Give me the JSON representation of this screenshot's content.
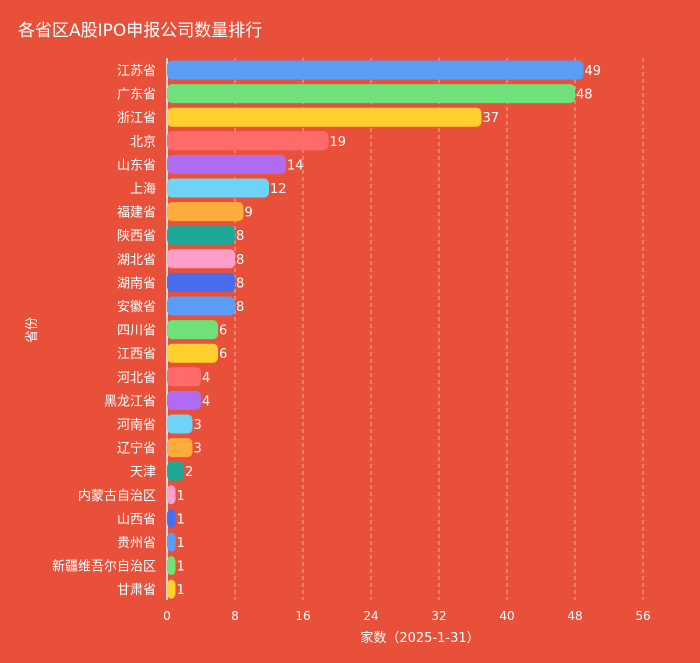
{
  "chart_data": {
    "type": "bar",
    "orientation": "horizontal",
    "title": "各省区A股IPO申报公司数量排行",
    "xlabel": "家数（2025-1-31）",
    "ylabel": "省份",
    "xlim": [
      0,
      60
    ],
    "xticks": [
      "0",
      "8",
      "16",
      "24",
      "32",
      "40",
      "48",
      "56"
    ],
    "grid": "vertical-dashed",
    "categories": [
      "江苏省",
      "广东省",
      "浙江省",
      "北京",
      "山东省",
      "上海",
      "福建省",
      "陕西省",
      "湖北省",
      "湖南省",
      "安徽省",
      "四川省",
      "江西省",
      "河北省",
      "黑龙江省",
      "河南省",
      "辽宁省",
      "天津",
      "内蒙古自治区",
      "山西省",
      "贵州省",
      "新疆维吾尔自治区",
      "甘肃省"
    ],
    "values": [
      49,
      48,
      37,
      19,
      14,
      12,
      9,
      8,
      8,
      8,
      8,
      6,
      6,
      4,
      4,
      3,
      3,
      2,
      1,
      1,
      1,
      1,
      1
    ],
    "colors": [
      "#5b9cf5",
      "#6fe07a",
      "#ffd02e",
      "#ff6b6b",
      "#b06cf0",
      "#6fd3f7",
      "#ffab3d",
      "#1fa896",
      "#ff9ec8",
      "#4a6df0",
      "#5b9cf5",
      "#6fe07a",
      "#ffd02e",
      "#ff6b6b",
      "#b06cf0",
      "#6fd3f7",
      "#ffab3d",
      "#1fa896",
      "#ff9ec8",
      "#4a6df0",
      "#5b9cf5",
      "#6fe07a",
      "#ffd02e"
    ]
  }
}
